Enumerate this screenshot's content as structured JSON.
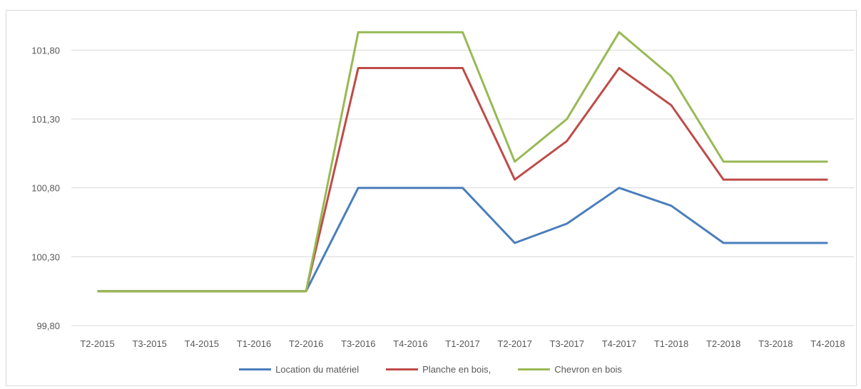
{
  "chart_data": {
    "type": "line",
    "title": "",
    "xlabel": "",
    "ylabel": "",
    "categories": [
      "T2-2015",
      "T3-2015",
      "T4-2015",
      "T1-2016",
      "T2-2016",
      "T3-2016",
      "T4-2016",
      "T1-2017",
      "T2-2017",
      "T3-2017",
      "T4-2017",
      "T1-2018",
      "T2-2018",
      "T3-2018",
      "T4-2018"
    ],
    "ylim": [
      99.8,
      102.05
    ],
    "yticks": [
      "99,80",
      "100,30",
      "100,80",
      "101,30",
      "101,80"
    ],
    "ytick_values": [
      99.8,
      100.3,
      100.8,
      101.3,
      101.8
    ],
    "grid": "horizontal",
    "legend_position": "bottom",
    "series": [
      {
        "name": "Location du matériel",
        "color": "#4a7ebb",
        "values": [
          100.05,
          100.05,
          100.05,
          100.05,
          100.05,
          100.8,
          100.8,
          100.8,
          100.4,
          100.54,
          100.8,
          100.67,
          100.4,
          100.4,
          100.4
        ]
      },
      {
        "name": "Planche en bois,",
        "color": "#be4b48",
        "values": [
          100.05,
          100.05,
          100.05,
          100.05,
          100.05,
          101.67,
          101.67,
          101.67,
          100.86,
          101.14,
          101.67,
          101.4,
          100.86,
          100.86,
          100.86
        ]
      },
      {
        "name": "Chevron en bois",
        "color": "#98b954",
        "values": [
          100.05,
          100.05,
          100.05,
          100.05,
          100.05,
          101.93,
          101.93,
          101.93,
          100.99,
          101.3,
          101.93,
          101.61,
          100.99,
          100.99,
          100.99
        ]
      }
    ]
  }
}
